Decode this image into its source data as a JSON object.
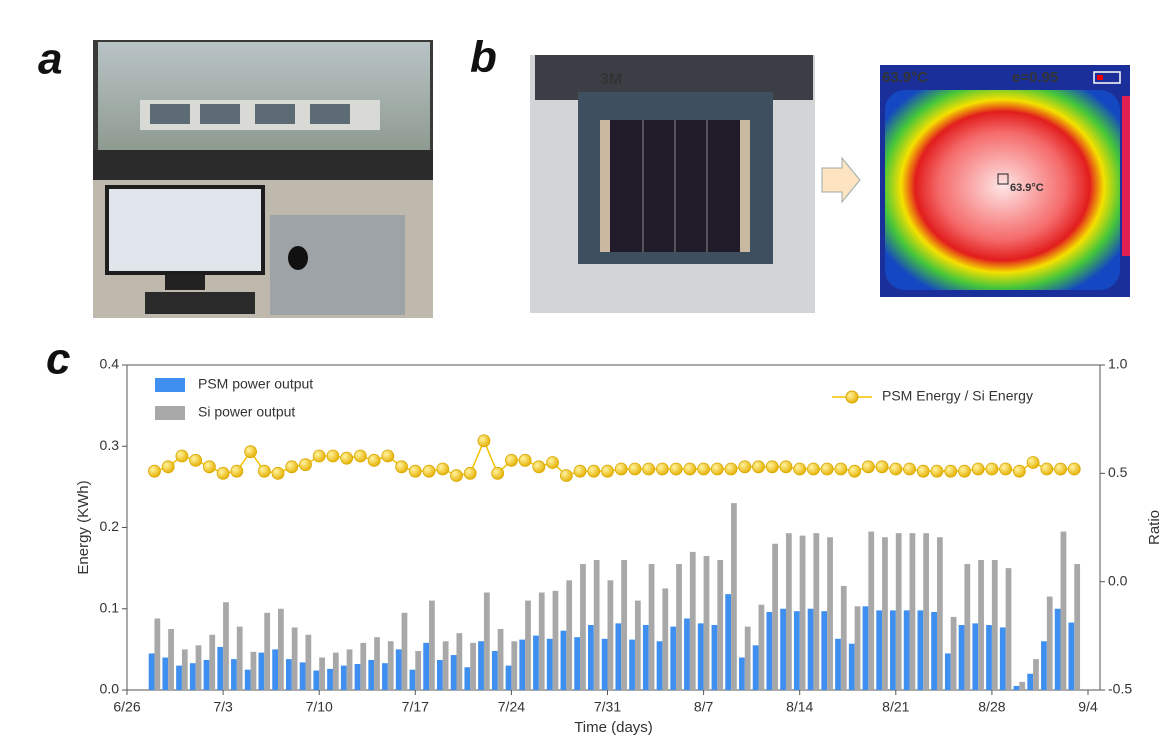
{
  "panels": {
    "a": "a",
    "b": "b",
    "c": "c"
  },
  "photo_b": {
    "tape": "3M"
  },
  "thermal": {
    "temp": "63.9°C",
    "emissivity": "e=0.95",
    "spot": "63.9°C"
  },
  "chart_data": {
    "type": "bar",
    "xlabel": "Time (days)",
    "ylabel": "Energy (KWh)",
    "y2label": "Ratio",
    "categories": [
      "6/26",
      null,
      null,
      null,
      null,
      null,
      null,
      "7/3",
      null,
      null,
      null,
      null,
      null,
      null,
      "7/10",
      null,
      null,
      null,
      null,
      null,
      null,
      "7/17",
      null,
      null,
      null,
      null,
      null,
      null,
      "7/24",
      null,
      null,
      null,
      null,
      null,
      null,
      "7/31",
      null,
      null,
      null,
      null,
      null,
      null,
      "8/7",
      null,
      null,
      null,
      null,
      null,
      null,
      "8/14",
      null,
      null,
      null,
      null,
      null,
      null,
      "8/21",
      null,
      null,
      null,
      null,
      null,
      null,
      "8/28",
      null,
      null,
      null,
      null,
      null,
      null,
      "9/4"
    ],
    "ylim": [
      0,
      0.4
    ],
    "yticks": [
      {
        "value": 0,
        "label": "0.0"
      },
      0.1,
      0.2,
      0.3,
      0.4
    ],
    "y2lim": [
      -0.5,
      1.0
    ],
    "y2ticks": [
      -0.5,
      {
        "value": 0,
        "label": "0.0"
      },
      0.5,
      {
        "value": 1,
        "label": "1.0"
      }
    ],
    "series": [
      {
        "name": "PSM power output",
        "color": "#3f8ff0",
        "type": "bar",
        "values": [
          null,
          null,
          0.045,
          0.04,
          0.03,
          0.033,
          0.037,
          0.053,
          0.038,
          0.025,
          0.046,
          0.05,
          0.038,
          0.034,
          0.024,
          0.026,
          0.03,
          0.032,
          0.037,
          0.033,
          0.05,
          0.025,
          0.058,
          0.037,
          0.043,
          0.028,
          0.06,
          0.048,
          0.03,
          0.062,
          0.067,
          0.063,
          0.073,
          0.065,
          0.08,
          0.063,
          0.082,
          0.062,
          0.08,
          0.06,
          0.078,
          0.088,
          0.082,
          0.08,
          0.118,
          0.04,
          0.055,
          0.096,
          0.1,
          0.097,
          0.1,
          0.097,
          0.063,
          0.057,
          0.103,
          0.098,
          0.098,
          0.098,
          0.098,
          0.096,
          0.045,
          0.08,
          0.082,
          0.08,
          0.077,
          0.005,
          0.02,
          0.06,
          0.1,
          0.083,
          null
        ]
      },
      {
        "name": "Si power output",
        "color": "#a8a8a8",
        "type": "bar",
        "values": [
          null,
          null,
          0.088,
          0.075,
          0.05,
          0.055,
          0.068,
          0.108,
          0.078,
          0.047,
          0.095,
          0.1,
          0.077,
          0.068,
          0.04,
          0.046,
          0.05,
          0.058,
          0.065,
          0.06,
          0.095,
          0.048,
          0.11,
          0.06,
          0.07,
          0.058,
          0.12,
          0.075,
          0.06,
          0.11,
          0.12,
          0.122,
          0.135,
          0.155,
          0.16,
          0.135,
          0.16,
          0.11,
          0.155,
          0.125,
          0.155,
          0.17,
          0.165,
          0.16,
          0.23,
          0.078,
          0.105,
          0.18,
          0.193,
          0.19,
          0.193,
          0.188,
          0.128,
          0.103,
          0.195,
          0.188,
          0.193,
          0.193,
          0.193,
          0.188,
          0.09,
          0.155,
          0.16,
          0.16,
          0.15,
          0.01,
          0.038,
          0.115,
          0.195,
          0.155,
          null
        ]
      },
      {
        "name": "PSM Energy / Si Energy",
        "color": "#f2c200",
        "type": "line",
        "axis": "y2",
        "values": [
          null,
          null,
          0.51,
          0.53,
          0.58,
          0.56,
          0.53,
          0.5,
          0.51,
          0.6,
          0.51,
          0.5,
          0.53,
          0.54,
          0.58,
          0.58,
          0.57,
          0.58,
          0.56,
          0.58,
          0.53,
          0.51,
          0.51,
          0.52,
          0.49,
          0.5,
          0.65,
          0.5,
          0.56,
          0.56,
          0.53,
          0.55,
          0.49,
          0.51,
          0.51,
          0.51,
          0.52,
          0.52,
          0.52,
          0.52,
          0.52,
          0.52,
          0.52,
          0.52,
          0.52,
          0.53,
          0.53,
          0.53,
          0.53,
          0.52,
          0.52,
          0.52,
          0.52,
          0.51,
          0.53,
          0.53,
          0.52,
          0.52,
          0.51,
          0.51,
          0.51,
          0.51,
          0.52,
          0.52,
          0.52,
          0.51,
          0.55,
          0.52,
          0.52,
          0.52,
          null
        ]
      }
    ]
  }
}
